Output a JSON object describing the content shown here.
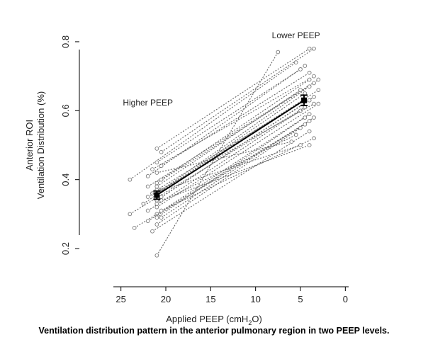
{
  "chart_data": {
    "type": "line",
    "caption": "Ventilation distribution pattern in the anterior pulmonary region in two PEEP levels.",
    "xlabel_main": "Applied PEEP (cmH",
    "xlabel_sub": "2",
    "xlabel_end": "O)",
    "ylabel_line1": "Anterior ROI",
    "ylabel_line2": "Ventilation Distribution (%)",
    "xlim": [
      29,
      -1
    ],
    "ylim": [
      0.12,
      0.88
    ],
    "xticks": [
      25,
      20,
      15,
      10,
      5,
      0
    ],
    "yticks": [
      0.2,
      0.4,
      0.6,
      0.8
    ],
    "xtick_labels": [
      "25",
      "20",
      "15",
      "10",
      "5",
      "0"
    ],
    "ytick_labels": [
      "0.2",
      "0.4",
      "0.6",
      "0.8"
    ],
    "annotations": [
      {
        "text": "Higher PEEP",
        "x": 22,
        "y": 0.615
      },
      {
        "text": "Lower PEEP",
        "x": 5.5,
        "y": 0.81
      }
    ],
    "mean_series": {
      "x": [
        21,
        4.6
      ],
      "y": [
        0.355,
        0.63
      ],
      "yerr": [
        0.012,
        0.015
      ]
    },
    "subjects": [
      [
        21,
        0.18,
        7.5,
        0.77
      ],
      [
        21,
        0.49,
        4,
        0.78
      ],
      [
        20.5,
        0.48,
        3.5,
        0.78
      ],
      [
        24,
        0.4,
        5.5,
        0.74
      ],
      [
        22,
        0.41,
        4.5,
        0.73
      ],
      [
        21,
        0.45,
        5,
        0.72
      ],
      [
        20.5,
        0.44,
        4,
        0.71
      ],
      [
        21.5,
        0.43,
        3.5,
        0.7
      ],
      [
        22,
        0.38,
        3,
        0.69
      ],
      [
        21,
        0.39,
        3.5,
        0.68
      ],
      [
        20.5,
        0.37,
        4,
        0.67
      ],
      [
        21,
        0.36,
        3,
        0.66
      ],
      [
        22.5,
        0.33,
        4.5,
        0.65
      ],
      [
        21,
        0.34,
        3.5,
        0.64
      ],
      [
        20.5,
        0.35,
        4,
        0.63
      ],
      [
        21,
        0.32,
        3,
        0.62
      ],
      [
        24,
        0.3,
        4.5,
        0.61
      ],
      [
        22,
        0.31,
        5,
        0.6
      ],
      [
        21,
        0.3,
        4,
        0.59
      ],
      [
        20.5,
        0.29,
        3.5,
        0.58
      ],
      [
        23.5,
        0.26,
        4,
        0.57
      ],
      [
        22,
        0.28,
        4.5,
        0.56
      ],
      [
        21,
        0.27,
        5,
        0.55
      ],
      [
        21.5,
        0.25,
        4,
        0.54
      ],
      [
        21,
        0.33,
        5.5,
        0.53
      ],
      [
        20.5,
        0.31,
        3.5,
        0.52
      ],
      [
        21,
        0.42,
        6,
        0.51
      ],
      [
        21.5,
        0.36,
        5,
        0.5
      ],
      [
        20.5,
        0.34,
        4,
        0.5
      ],
      [
        21,
        0.29,
        4.5,
        0.58
      ],
      [
        22,
        0.35,
        3.5,
        0.62
      ],
      [
        21,
        0.38,
        5,
        0.66
      ],
      [
        20.5,
        0.4,
        4,
        0.69
      ],
      [
        21,
        0.37,
        4.5,
        0.63
      ]
    ]
  }
}
